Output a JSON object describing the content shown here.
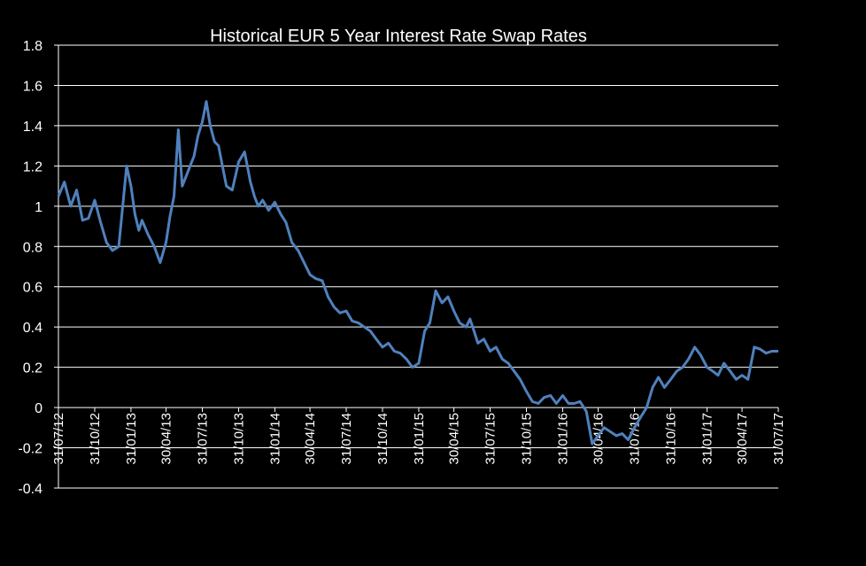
{
  "chart_data": {
    "type": "line",
    "title": "Historical EUR 5 Year Interest Rate Swap Rates",
    "xlabel": "",
    "ylabel": "",
    "ylim": [
      -0.4,
      1.8
    ],
    "yticks": [
      "1.8",
      "1.6",
      "1.4",
      "1.2",
      "1",
      "0.8",
      "0.6",
      "0.4",
      "0.2",
      "0",
      "-0.2",
      "-0.4"
    ],
    "ytick_values": [
      1.8,
      1.6,
      1.4,
      1.2,
      1.0,
      0.8,
      0.6,
      0.4,
      0.2,
      0.0,
      -0.2,
      -0.4
    ],
    "xticks": [
      "31/07/12",
      "31/10/12",
      "31/01/13",
      "30/04/13",
      "31/07/13",
      "31/10/13",
      "31/01/14",
      "30/04/14",
      "31/07/14",
      "31/10/14",
      "31/01/15",
      "30/04/15",
      "31/07/15",
      "31/10/15",
      "31/01/16",
      "30/04/16",
      "31/07/16",
      "31/10/16",
      "31/01/17",
      "30/04/17",
      "31/07/17"
    ],
    "grid": true,
    "legend": "none",
    "colors": {
      "background": "#000000",
      "line": "#4f81bd",
      "text": "#ffffff",
      "grid": "#ffffff"
    },
    "series": [
      {
        "x": [
          "2012-07-31",
          "2012-08-15",
          "2012-08-31",
          "2012-09-15",
          "2012-09-30",
          "2012-10-15",
          "2012-10-31",
          "2012-11-15",
          "2012-11-30",
          "2012-12-15",
          "2012-12-31",
          "2013-01-10",
          "2013-01-20",
          "2013-01-31",
          "2013-02-10",
          "2013-02-20",
          "2013-02-28",
          "2013-03-15",
          "2013-03-31",
          "2013-04-15",
          "2013-04-30",
          "2013-05-10",
          "2013-05-20",
          "2013-05-31",
          "2013-06-10",
          "2013-06-20",
          "2013-06-30",
          "2013-07-10",
          "2013-07-20",
          "2013-07-31",
          "2013-08-10",
          "2013-08-20",
          "2013-08-31",
          "2013-09-10",
          "2013-09-20",
          "2013-09-30",
          "2013-10-15",
          "2013-10-31",
          "2013-11-15",
          "2013-11-30",
          "2013-12-10",
          "2013-12-20",
          "2013-12-31",
          "2014-01-15",
          "2014-01-31",
          "2014-02-15",
          "2014-02-28",
          "2014-03-15",
          "2014-03-31",
          "2014-04-15",
          "2014-04-30",
          "2014-05-15",
          "2014-05-31",
          "2014-06-15",
          "2014-06-30",
          "2014-07-15",
          "2014-07-31",
          "2014-08-15",
          "2014-08-31",
          "2014-09-15",
          "2014-09-30",
          "2014-10-15",
          "2014-10-31",
          "2014-11-15",
          "2014-11-30",
          "2014-12-15",
          "2014-12-31",
          "2015-01-15",
          "2015-01-31",
          "2015-02-15",
          "2015-02-28",
          "2015-03-15",
          "2015-03-31",
          "2015-04-15",
          "2015-04-30",
          "2015-05-15",
          "2015-05-31",
          "2015-06-10",
          "2015-06-20",
          "2015-06-30",
          "2015-07-15",
          "2015-07-31",
          "2015-08-15",
          "2015-08-31",
          "2015-09-15",
          "2015-09-30",
          "2015-10-15",
          "2015-10-31",
          "2015-11-15",
          "2015-11-30",
          "2015-12-15",
          "2015-12-31",
          "2016-01-15",
          "2016-01-31",
          "2016-02-15",
          "2016-02-29",
          "2016-03-15",
          "2016-03-31",
          "2016-04-15",
          "2016-04-30",
          "2016-05-15",
          "2016-05-31",
          "2016-06-15",
          "2016-06-30",
          "2016-07-15",
          "2016-07-31",
          "2016-08-15",
          "2016-08-31",
          "2016-09-15",
          "2016-09-30",
          "2016-10-15",
          "2016-10-31",
          "2016-11-15",
          "2016-11-30",
          "2016-12-15",
          "2016-12-31",
          "2017-01-15",
          "2017-01-31",
          "2017-02-15",
          "2017-02-28",
          "2017-03-15",
          "2017-03-31",
          "2017-04-15",
          "2017-04-30",
          "2017-05-15",
          "2017-05-31",
          "2017-06-15",
          "2017-06-30",
          "2017-07-15",
          "2017-07-31"
        ],
        "values": [
          1.05,
          1.12,
          1.0,
          1.08,
          0.93,
          0.94,
          1.03,
          0.92,
          0.82,
          0.78,
          0.8,
          1.0,
          1.2,
          1.1,
          0.96,
          0.88,
          0.93,
          0.86,
          0.8,
          0.72,
          0.82,
          0.95,
          1.05,
          1.38,
          1.1,
          1.15,
          1.2,
          1.25,
          1.35,
          1.42,
          1.52,
          1.4,
          1.32,
          1.3,
          1.2,
          1.1,
          1.08,
          1.22,
          1.27,
          1.12,
          1.05,
          1.0,
          1.03,
          0.98,
          1.02,
          0.96,
          0.92,
          0.82,
          0.78,
          0.72,
          0.66,
          0.64,
          0.63,
          0.55,
          0.5,
          0.47,
          0.48,
          0.43,
          0.42,
          0.4,
          0.38,
          0.34,
          0.3,
          0.32,
          0.28,
          0.27,
          0.24,
          0.2,
          0.22,
          0.38,
          0.42,
          0.58,
          0.52,
          0.55,
          0.48,
          0.42,
          0.4,
          0.44,
          0.38,
          0.32,
          0.34,
          0.28,
          0.3,
          0.24,
          0.22,
          0.18,
          0.14,
          0.08,
          0.03,
          0.02,
          0.05,
          0.06,
          0.02,
          0.06,
          0.02,
          0.02,
          0.03,
          -0.02,
          -0.18,
          -0.14,
          -0.1,
          -0.12,
          -0.14,
          -0.13,
          -0.16,
          -0.1,
          -0.05,
          0.0,
          0.1,
          0.15,
          0.1,
          0.14,
          0.18,
          0.2,
          0.24,
          0.3,
          0.26,
          0.2,
          0.18,
          0.16,
          0.22,
          0.18,
          0.14,
          0.16,
          0.14,
          0.3,
          0.29,
          0.27,
          0.28,
          0.28
        ]
      }
    ]
  }
}
